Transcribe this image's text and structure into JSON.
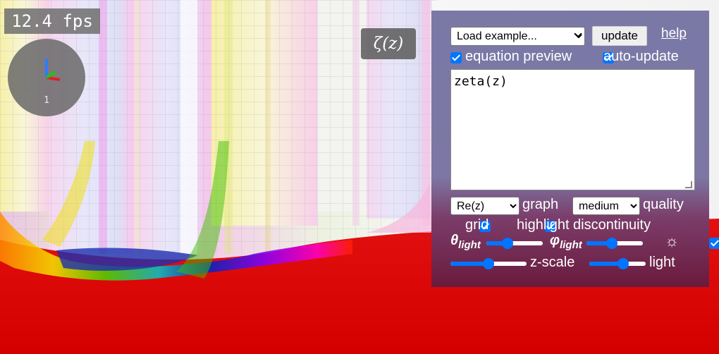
{
  "fps": "12.4 fps",
  "gizmo": {
    "label": "1"
  },
  "equation_preview": "ζ(z)",
  "panel": {
    "example_select": "Load example...",
    "update_label": "update",
    "help_label": "help",
    "equation_preview_label": "equation preview",
    "auto_update_label": "auto-update",
    "equation": "zeta(z)",
    "graph_select": "Re(z)",
    "graph_label": "graph",
    "quality_select": "medium",
    "quality_label": "quality",
    "grid_label": "grid",
    "highlight_label": "highlight discontinuity",
    "theta_label": "θ",
    "theta_sub": "light",
    "phi_label": "φ",
    "phi_sub": "light",
    "sun_icon": "☼",
    "zscale_label": "z-scale",
    "light_label": "light",
    "theta_value": 0.35,
    "phi_value": 0.43,
    "zscale_value": 0.5,
    "light_value": 0.62
  }
}
